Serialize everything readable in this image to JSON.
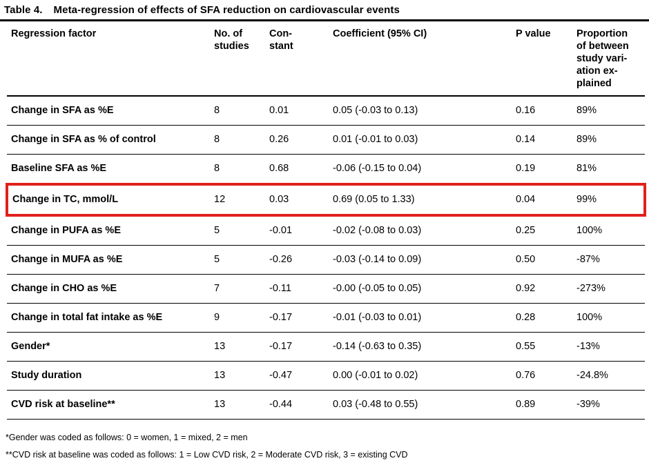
{
  "page": {
    "title_label": "Table 4.",
    "title": "Meta-regression of effects of SFA reduction on cardiovascular events"
  },
  "table": {
    "highlight_color": "#e0201b",
    "headers": {
      "factor": "Regression factor",
      "n": "No. of\nstudies",
      "constant": "Con-\nstant",
      "coefficient": "Coefficient (95% CI)",
      "p": "P value",
      "proportion": "Proportion\nof between\nstudy vari-\nation ex-\nplained"
    },
    "rows": [
      {
        "factor": "Change in SFA as %E",
        "n": "8",
        "constant": "0.01",
        "coefficient": "0.05 (-0.03 to 0.13)",
        "p": "0.16",
        "proportion": "89%",
        "highlighted": false
      },
      {
        "factor": "Change in SFA as % of control",
        "n": "8",
        "constant": "0.26",
        "coefficient": "0.01 (-0.01 to 0.03)",
        "p": "0.14",
        "proportion": "89%",
        "highlighted": false
      },
      {
        "factor": "Baseline SFA as %E",
        "n": "8",
        "constant": "0.68",
        "coefficient": "-0.06 (-0.15 to 0.04)",
        "p": "0.19",
        "proportion": "81%",
        "highlighted": false
      },
      {
        "factor": "Change in TC, mmol/L",
        "n": "12",
        "constant": "0.03",
        "coefficient": "0.69 (0.05 to 1.33)",
        "p": "0.04",
        "proportion": "99%",
        "highlighted": true
      },
      {
        "factor": "Change in PUFA as %E",
        "n": "5",
        "constant": "-0.01",
        "coefficient": "-0.02 (-0.08 to 0.03)",
        "p": "0.25",
        "proportion": "100%",
        "highlighted": false
      },
      {
        "factor": "Change in MUFA as %E",
        "n": "5",
        "constant": "-0.26",
        "coefficient": "-0.03 (-0.14 to 0.09)",
        "p": "0.50",
        "proportion": "-87%",
        "highlighted": false
      },
      {
        "factor": "Change in CHO as %E",
        "n": "7",
        "constant": "-0.11",
        "coefficient": "-0.00 (-0.05 to 0.05)",
        "p": "0.92",
        "proportion": "-273%",
        "highlighted": false
      },
      {
        "factor": "Change in total fat intake as %E",
        "n": "9",
        "constant": "-0.17",
        "coefficient": "-0.01 (-0.03 to 0.01)",
        "p": "0.28",
        "proportion": "100%",
        "highlighted": false
      },
      {
        "factor": "Gender*",
        "n": "13",
        "constant": "-0.17",
        "coefficient": "-0.14 (-0.63 to 0.35)",
        "p": "0.55",
        "proportion": "-13%",
        "highlighted": false
      },
      {
        "factor": "Study duration",
        "n": "13",
        "constant": "-0.47",
        "coefficient": "0.00 (-0.01 to 0.02)",
        "p": "0.76",
        "proportion": "-24.8%",
        "highlighted": false
      },
      {
        "factor": "CVD risk at baseline**",
        "n": "13",
        "constant": "-0.44",
        "coefficient": "0.03 (-0.48 to 0.55)",
        "p": "0.89",
        "proportion": "-39%",
        "highlighted": false
      }
    ]
  },
  "footnotes": [
    "*Gender was coded as follows: 0 = women, 1 = mixed, 2 = men",
    "**CVD risk at baseline was coded as follows: 1 = Low CVD risk, 2 = Moderate CVD risk, 3 = existing CVD"
  ]
}
